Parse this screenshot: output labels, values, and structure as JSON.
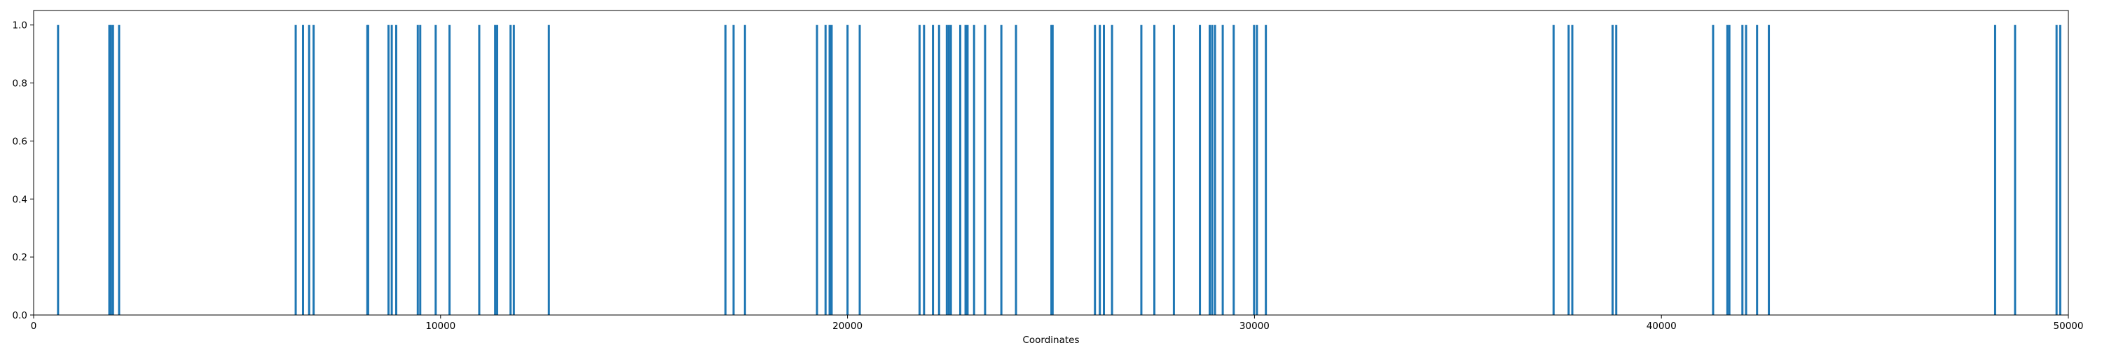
{
  "chart_data": {
    "type": "bar",
    "title": "",
    "xlabel": "Coordinates",
    "ylabel": "",
    "xlim": [
      0,
      50000
    ],
    "ylim": [
      0.0,
      1.05
    ],
    "grid": false,
    "legend": "none",
    "bar_color": "#1f77b4",
    "xticks": [
      {
        "value": 0,
        "label": "0"
      },
      {
        "value": 10000,
        "label": "10000"
      },
      {
        "value": 20000,
        "label": "20000"
      },
      {
        "value": 30000,
        "label": "30000"
      },
      {
        "value": 40000,
        "label": "40000"
      },
      {
        "value": 50000,
        "label": "50000"
      }
    ],
    "yticks": [
      {
        "value": 0.0,
        "label": "0.0"
      },
      {
        "value": 0.2,
        "label": "0.2"
      },
      {
        "value": 0.4,
        "label": "0.4"
      },
      {
        "value": 0.6,
        "label": "0.6"
      },
      {
        "value": 0.8,
        "label": "0.8"
      },
      {
        "value": 1.0,
        "label": "1.0"
      }
    ],
    "x": [
      600,
      1860,
      1900,
      1950,
      2100,
      6440,
      6620,
      6770,
      6880,
      8200,
      8220,
      8720,
      8800,
      8910,
      9440,
      9500,
      9880,
      10220,
      10950,
      11340,
      11390,
      11720,
      11800,
      12660,
      17000,
      17200,
      17480,
      19250,
      19460,
      19560,
      19610,
      20000,
      20300,
      21770,
      21880,
      22100,
      22250,
      22440,
      22490,
      22540,
      22770,
      22900,
      22950,
      23110,
      23380,
      23780,
      24140,
      25010,
      25040,
      26080,
      26200,
      26300,
      26500,
      27220,
      27540,
      28020,
      28660,
      28900,
      28960,
      29030,
      29220,
      29490,
      29990,
      30060,
      30280,
      37350,
      37720,
      37810,
      38800,
      38890,
      41270,
      41620,
      41670,
      41990,
      42080,
      42350,
      42640,
      48200,
      48690,
      49710,
      49800
    ],
    "values": [
      1,
      1,
      1,
      1,
      1,
      1,
      1,
      1,
      1,
      1,
      1,
      1,
      1,
      1,
      1,
      1,
      1,
      1,
      1,
      1,
      1,
      1,
      1,
      1,
      1,
      1,
      1,
      1,
      1,
      1,
      1,
      1,
      1,
      1,
      1,
      1,
      1,
      1,
      1,
      1,
      1,
      1,
      1,
      1,
      1,
      1,
      1,
      1,
      1,
      1,
      1,
      1,
      1,
      1,
      1,
      1,
      1,
      1,
      1,
      1,
      1,
      1,
      1,
      1,
      1,
      1,
      1,
      1,
      1,
      1,
      1,
      1,
      1,
      1,
      1,
      1,
      1,
      1,
      1,
      1,
      1
    ]
  }
}
